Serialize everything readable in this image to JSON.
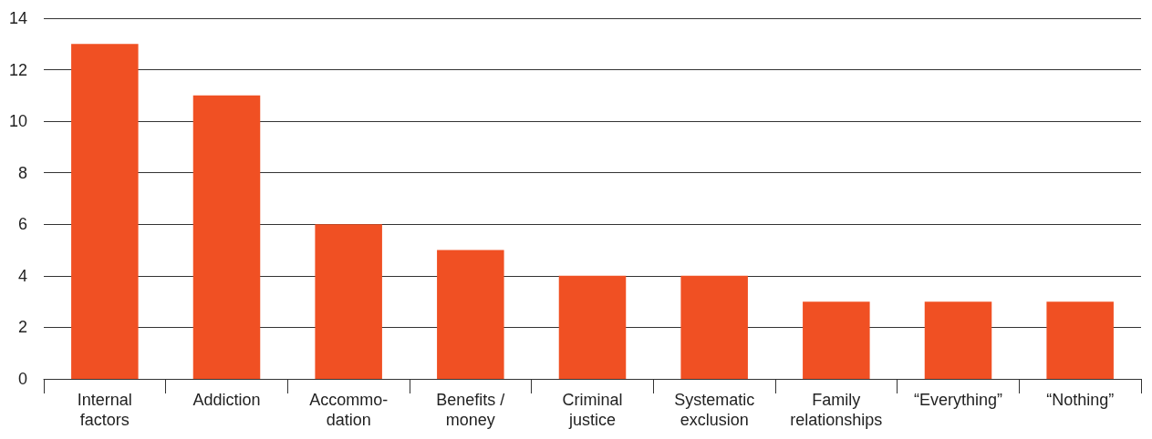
{
  "chart_data": {
    "type": "bar",
    "categories": [
      "Internal\nfactors",
      "Addiction",
      "Accommo-\ndation",
      "Benefits /\nmoney",
      "Criminal\njustice",
      "Systematic\nexclusion",
      "Family\nrelationships",
      "“Everything”",
      "“Nothing”"
    ],
    "values": [
      13,
      11,
      6,
      5,
      4,
      4,
      3,
      3,
      3
    ],
    "color": "#f05023",
    "ylim": [
      0,
      14
    ],
    "yticks": [
      0,
      2,
      4,
      6,
      8,
      10,
      12,
      14
    ],
    "grid": "y"
  }
}
